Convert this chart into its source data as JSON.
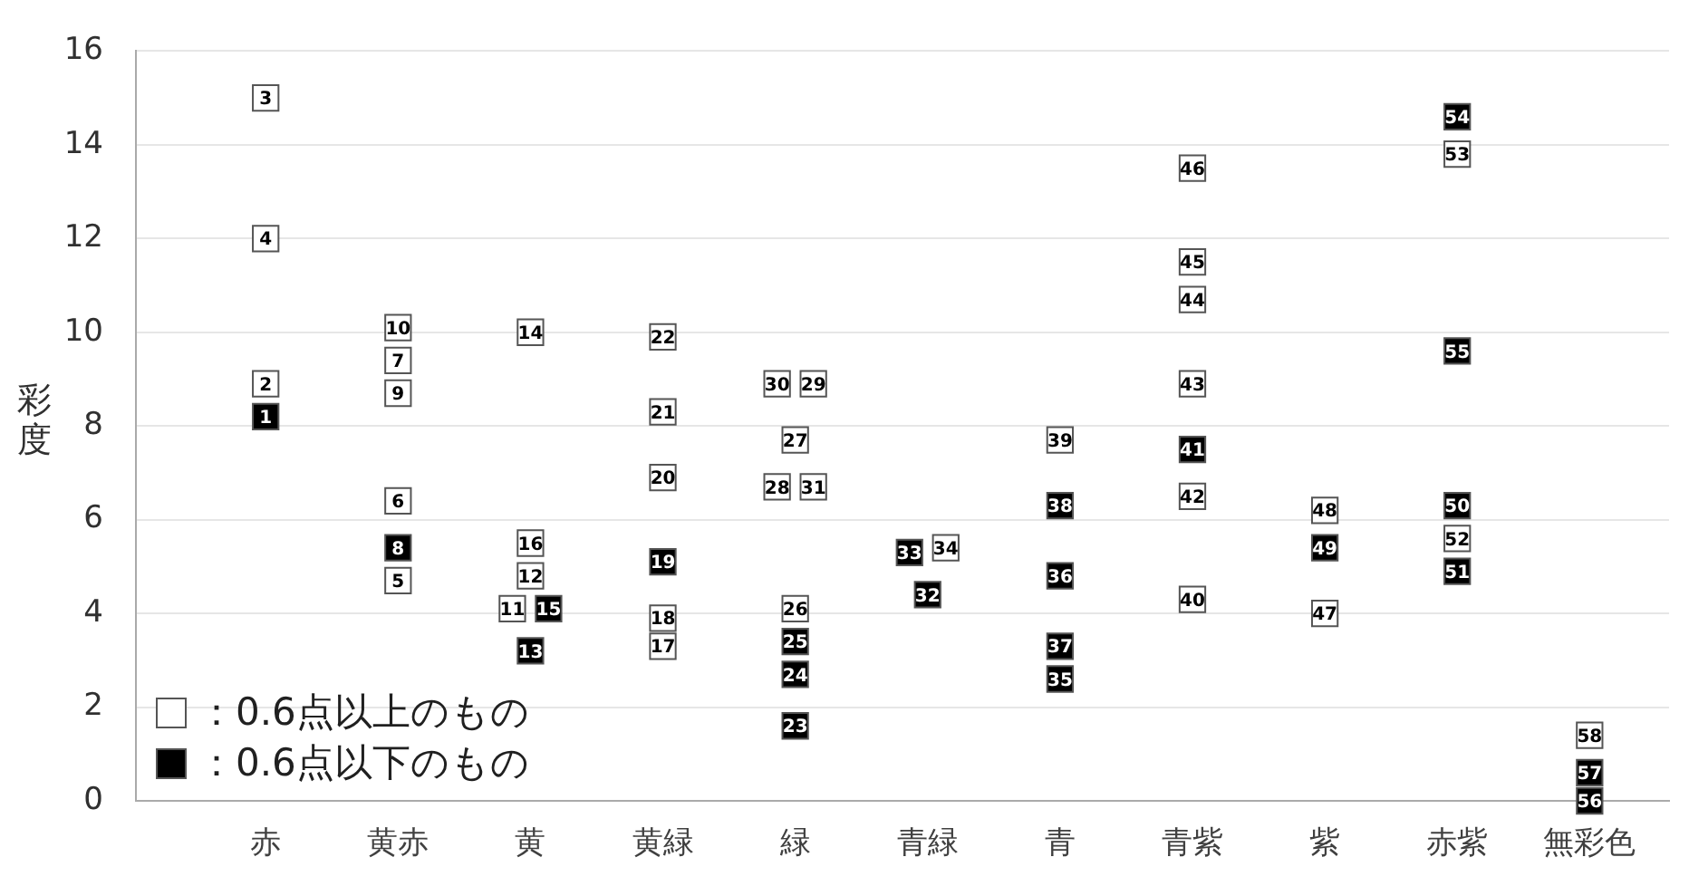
{
  "chart_data": {
    "type": "scatter",
    "ylabel": "彩度",
    "categories": [
      "赤",
      "黄赤",
      "黄",
      "黄緑",
      "緑",
      "青緑",
      "青",
      "青紫",
      "紫",
      "赤紫",
      "無彩色"
    ],
    "ylim": [
      0,
      16
    ],
    "yticks": [
      0,
      2,
      4,
      6,
      8,
      10,
      12,
      14,
      16
    ],
    "grid": "y",
    "legend": "bottom left",
    "marker": "square",
    "series": [
      {
        "name": "：0.6点以上のもの",
        "color": "#ffffff",
        "x": [
          "赤",
          "赤",
          "赤",
          "黄赤",
          "黄赤",
          "黄赤",
          "黄赤",
          "黄赤",
          "黄",
          "黄",
          "黄",
          "黄",
          "黄緑",
          "黄緑",
          "黄緑",
          "黄緑",
          "黄緑",
          "緑",
          "緑",
          "緑",
          "緑",
          "緑",
          "緑",
          "青緑",
          "青",
          "青紫",
          "青紫",
          "青紫",
          "青紫",
          "青紫",
          "青紫",
          "紫",
          "紫",
          "赤紫",
          "赤紫",
          "無彩色"
        ],
        "values": [
          15.0,
          12.0,
          8.9,
          10.1,
          9.4,
          8.7,
          6.4,
          4.7,
          10.0,
          5.5,
          4.8,
          4.1,
          9.9,
          8.3,
          6.9,
          3.9,
          3.3,
          8.9,
          8.9,
          7.7,
          6.7,
          6.7,
          4.1,
          5.4,
          7.7,
          13.5,
          11.5,
          10.7,
          8.9,
          6.5,
          4.3,
          6.2,
          4.0,
          13.8,
          5.6,
          1.4
        ]
      },
      {
        "name": "：0.6点以下のもの",
        "color": "#000000",
        "x": [
          "赤",
          "黄赤",
          "黄",
          "黄",
          "黄緑",
          "緑",
          "緑",
          "緑",
          "青緑",
          "青緑",
          "青",
          "青",
          "青",
          "青",
          "青紫",
          "紫",
          "赤紫",
          "赤紫",
          "赤紫",
          "赤紫",
          "無彩色",
          "無彩色"
        ],
        "values": [
          8.2,
          5.4,
          4.1,
          3.2,
          5.1,
          3.4,
          2.7,
          1.6,
          5.3,
          4.4,
          6.3,
          4.8,
          3.3,
          2.6,
          7.5,
          5.4,
          14.6,
          9.6,
          6.3,
          4.9,
          0.6,
          0.0
        ]
      }
    ],
    "annotations": [
      {
        "text": "1",
        "x": "赤",
        "y": 8.2
      },
      {
        "text": "2",
        "x": "赤",
        "y": 8.9
      },
      {
        "text": "3",
        "x": "赤",
        "y": 15.0
      },
      {
        "text": "4",
        "x": "赤",
        "y": 12.0
      },
      {
        "text": "5",
        "x": "黄赤",
        "y": 4.7
      },
      {
        "text": "6",
        "x": "黄赤",
        "y": 6.4
      },
      {
        "text": "7",
        "x": "黄赤",
        "y": 9.4
      },
      {
        "text": "8",
        "x": "黄赤",
        "y": 5.4
      },
      {
        "text": "9",
        "x": "黄赤",
        "y": 8.7
      },
      {
        "text": "10",
        "x": "黄赤",
        "y": 10.1
      },
      {
        "text": "11",
        "x": "黄",
        "y": 4.1
      },
      {
        "text": "15",
        "x": "黄",
        "y": 4.1
      },
      {
        "text": "12",
        "x": "黄",
        "y": 4.8
      },
      {
        "text": "13",
        "x": "黄",
        "y": 3.2
      },
      {
        "text": "14",
        "x": "黄",
        "y": 10.0
      },
      {
        "text": "16",
        "x": "黄",
        "y": 5.5
      },
      {
        "text": "17",
        "x": "黄緑",
        "y": 3.3
      },
      {
        "text": "18",
        "x": "黄緑",
        "y": 3.9
      },
      {
        "text": "19",
        "x": "黄緑",
        "y": 5.1
      },
      {
        "text": "20",
        "x": "黄緑",
        "y": 6.9
      },
      {
        "text": "21",
        "x": "黄緑",
        "y": 8.3
      },
      {
        "text": "22",
        "x": "黄緑",
        "y": 9.9
      },
      {
        "text": "23",
        "x": "緑",
        "y": 1.6
      },
      {
        "text": "24",
        "x": "緑",
        "y": 2.7
      },
      {
        "text": "25",
        "x": "緑",
        "y": 3.4
      },
      {
        "text": "26",
        "x": "緑",
        "y": 4.1
      },
      {
        "text": "27",
        "x": "緑",
        "y": 7.7
      },
      {
        "text": "28",
        "x": "緑",
        "y": 6.7
      },
      {
        "text": "31",
        "x": "緑",
        "y": 6.7
      },
      {
        "text": "30",
        "x": "緑",
        "y": 8.9
      },
      {
        "text": "29",
        "x": "緑",
        "y": 8.9
      },
      {
        "text": "32",
        "x": "青緑",
        "y": 4.4
      },
      {
        "text": "33",
        "x": "青緑",
        "y": 5.3
      },
      {
        "text": "34",
        "x": "青緑",
        "y": 5.4
      },
      {
        "text": "35",
        "x": "青",
        "y": 2.6
      },
      {
        "text": "36",
        "x": "青",
        "y": 4.8
      },
      {
        "text": "37",
        "x": "青",
        "y": 3.3
      },
      {
        "text": "38",
        "x": "青",
        "y": 6.3
      },
      {
        "text": "39",
        "x": "青",
        "y": 7.7
      },
      {
        "text": "40",
        "x": "青紫",
        "y": 4.3
      },
      {
        "text": "41",
        "x": "青紫",
        "y": 7.5
      },
      {
        "text": "42",
        "x": "青紫",
        "y": 6.5
      },
      {
        "text": "43",
        "x": "青紫",
        "y": 8.9
      },
      {
        "text": "44",
        "x": "青紫",
        "y": 10.7
      },
      {
        "text": "45",
        "x": "青紫",
        "y": 11.5
      },
      {
        "text": "46",
        "x": "青紫",
        "y": 13.5
      },
      {
        "text": "47",
        "x": "紫",
        "y": 4.0
      },
      {
        "text": "48",
        "x": "紫",
        "y": 6.2
      },
      {
        "text": "49",
        "x": "紫",
        "y": 5.4
      },
      {
        "text": "50",
        "x": "赤紫",
        "y": 6.3
      },
      {
        "text": "51",
        "x": "赤紫",
        "y": 4.9
      },
      {
        "text": "52",
        "x": "赤紫",
        "y": 5.6
      },
      {
        "text": "53",
        "x": "赤紫",
        "y": 13.8
      },
      {
        "text": "54",
        "x": "赤紫",
        "y": 14.6
      },
      {
        "text": "55",
        "x": "赤紫",
        "y": 9.6
      },
      {
        "text": "56",
        "x": "無彩色",
        "y": 0.0
      },
      {
        "text": "57",
        "x": "無彩色",
        "y": 0.6
      },
      {
        "text": "58",
        "x": "無彩色",
        "y": 1.4
      }
    ]
  }
}
